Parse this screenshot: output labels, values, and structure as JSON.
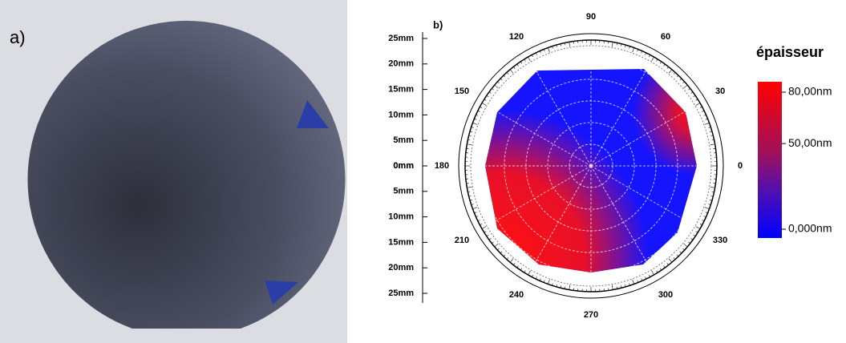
{
  "panel_a": {
    "label": "a)"
  },
  "panel_b": {
    "label": "b)",
    "angle_ticks": [
      0,
      30,
      60,
      90,
      120,
      150,
      180,
      210,
      240,
      270,
      300,
      330
    ],
    "radial_ticks_up": [
      {
        "value": 25,
        "label": "25mm"
      },
      {
        "value": 20,
        "label": "20mm"
      },
      {
        "value": 15,
        "label": "15mm"
      },
      {
        "value": 10,
        "label": "10mm"
      },
      {
        "value": 5,
        "label": "5mm"
      },
      {
        "value": 0,
        "label": "0mm"
      }
    ],
    "radial_ticks_down": [
      {
        "value": 0,
        "label": "0mm"
      },
      {
        "value": 5,
        "label": "5mm"
      },
      {
        "value": 10,
        "label": "10mm"
      },
      {
        "value": 15,
        "label": "15mm"
      },
      {
        "value": 20,
        "label": "20mm"
      },
      {
        "value": 25,
        "label": "25mm"
      }
    ],
    "colorbar": {
      "title": "épaisseur",
      "ticks": [
        {
          "value": 80,
          "label": "80,00nm"
        },
        {
          "value": 50,
          "label": "50,00nm"
        },
        {
          "value": 0,
          "label": "0,000nm"
        }
      ]
    }
  }
}
